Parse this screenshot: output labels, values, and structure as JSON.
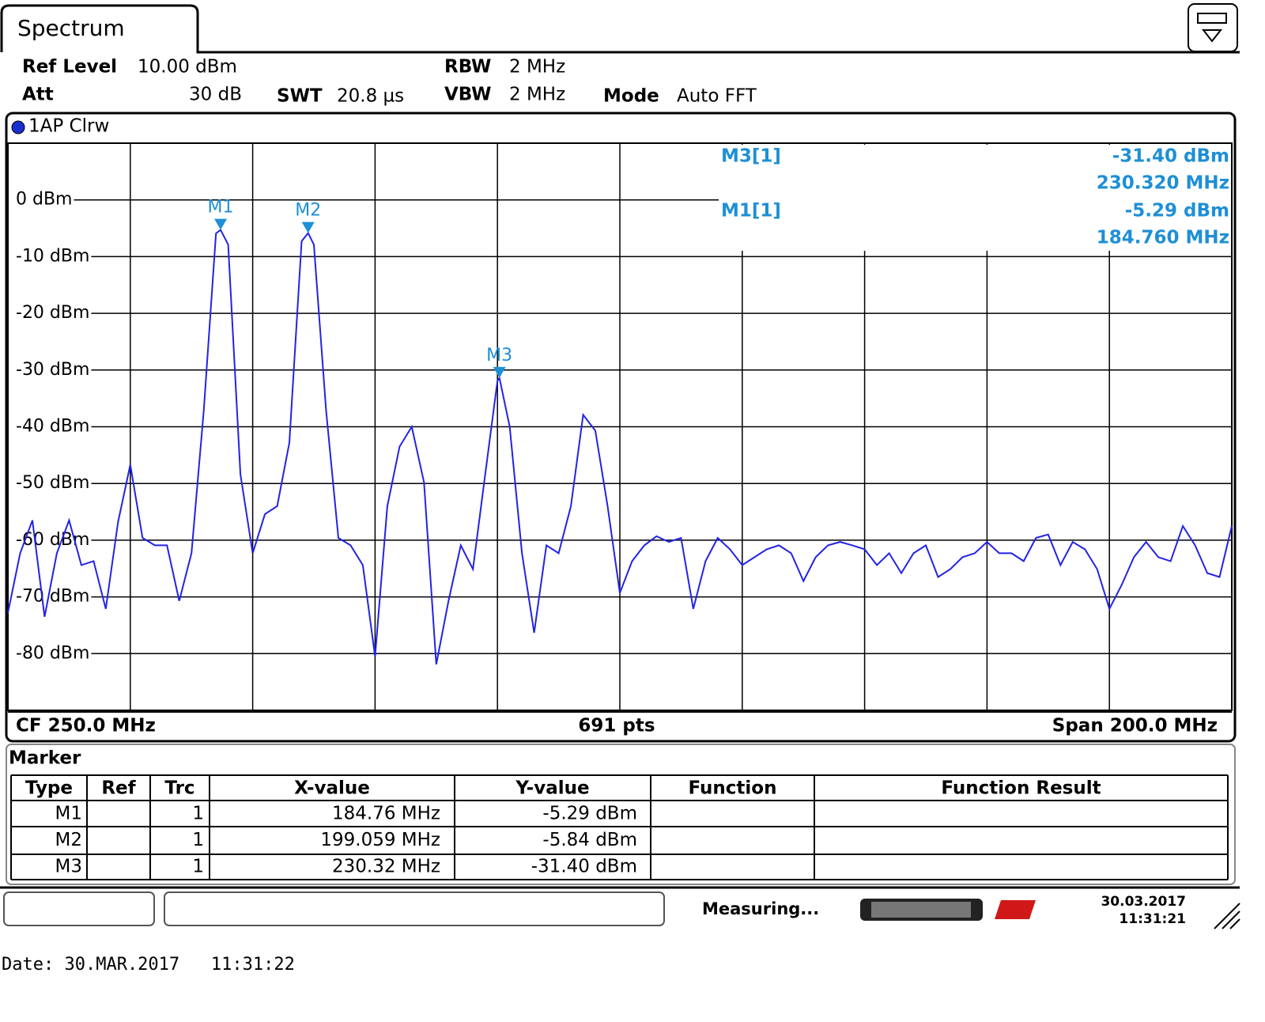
{
  "tab": "Spectrum",
  "settings": {
    "ref_level": {
      "label": "Ref Level",
      "value": "10.00 dBm"
    },
    "att": {
      "label": "Att",
      "value": "30 dB"
    },
    "swt": {
      "label": "SWT",
      "value": "20.8 µs"
    },
    "rbw": {
      "label": "RBW",
      "value": "2 MHz"
    },
    "vbw": {
      "label": "VBW",
      "value": "2 MHz"
    },
    "mode": {
      "label": "Mode",
      "value": "Auto FFT"
    }
  },
  "chart_data": {
    "type": "line",
    "x": [
      150,
      152,
      154,
      156,
      158,
      160,
      162,
      164,
      166,
      168,
      170,
      172,
      174,
      176,
      178,
      180,
      182,
      184,
      184.76,
      186,
      188,
      190,
      192,
      194,
      196,
      198,
      199.059,
      200,
      202,
      204,
      206,
      208,
      210,
      212,
      214,
      216,
      218,
      220,
      222,
      224,
      226,
      228,
      230,
      230.32,
      232,
      234,
      236,
      238,
      240,
      242,
      244,
      246,
      248,
      250,
      252,
      254,
      256,
      258,
      260,
      262,
      264,
      266,
      268,
      270,
      272,
      274,
      276,
      278,
      280,
      282,
      284,
      286,
      288,
      290,
      292,
      294,
      296,
      298,
      300,
      302,
      304,
      306,
      308,
      310,
      312,
      314,
      316,
      318,
      320,
      322,
      324,
      326,
      328,
      330,
      332,
      334,
      336,
      338,
      340,
      342,
      344,
      346,
      348,
      350
    ],
    "series": [
      {
        "name": "1AP Clrw",
        "color": "#2323e6",
        "values": [
          -72.8,
          -62.3,
          -56.5,
          -73.5,
          -62.3,
          -56.5,
          -64.4,
          -63.7,
          -72.1,
          -56.8,
          -46.7,
          -59.6,
          -60.9,
          -60.9,
          -70.7,
          -62.3,
          -37.2,
          -5.9,
          -5.29,
          -7.9,
          -48.4,
          -62.3,
          -55.4,
          -54.0,
          -42.8,
          -7.3,
          -5.84,
          -7.9,
          -37.2,
          -59.6,
          -60.9,
          -64.4,
          -80.5,
          -54.0,
          -43.5,
          -40.0,
          -49.8,
          -81.9,
          -70.7,
          -60.9,
          -65.1,
          -48.4,
          -31.9,
          -31.4,
          -40.0,
          -62.3,
          -76.3,
          -60.9,
          -62.3,
          -54.0,
          -37.9,
          -40.7,
          -54.0,
          -69.3,
          -63.7,
          -60.9,
          -59.3,
          -60.3,
          -59.6,
          -72.1,
          -63.7,
          -59.6,
          -61.6,
          -64.4,
          -63.0,
          -61.6,
          -60.9,
          -62.3,
          -67.2,
          -63.0,
          -60.9,
          -60.3,
          -60.9,
          -61.6,
          -64.4,
          -62.3,
          -65.8,
          -62.3,
          -60.9,
          -66.5,
          -65.1,
          -63.0,
          -62.3,
          -60.3,
          -62.3,
          -62.3,
          -63.7,
          -59.6,
          -59.0,
          -64.4,
          -60.3,
          -61.6,
          -65.1,
          -72.1,
          -67.9,
          -63.0,
          -60.3,
          -63.0,
          -63.7,
          -57.5,
          -60.9,
          -65.8,
          -66.5,
          -57.5
        ]
      }
    ],
    "xlim": [
      150,
      350
    ],
    "xticks": [
      150,
      170,
      190,
      210,
      230,
      250,
      270,
      290,
      310,
      330,
      350
    ],
    "ylim": [
      -90,
      10
    ],
    "yticks": [
      {
        "value": 0,
        "label": "0 dBm"
      },
      {
        "value": -10,
        "label": "-10 dBm"
      },
      {
        "value": -20,
        "label": "-20 dBm"
      },
      {
        "value": -30,
        "label": "-30 dBm"
      },
      {
        "value": -40,
        "label": "-40 dBm"
      },
      {
        "value": -50,
        "label": "-50 dBm"
      },
      {
        "value": -60,
        "label": "-60 dBm"
      },
      {
        "value": -70,
        "label": "-70 dBm"
      },
      {
        "value": -80,
        "label": "-80 dBm"
      }
    ],
    "grid": true,
    "markers": [
      {
        "name": "M1",
        "x": 184.76,
        "y": -5.29
      },
      {
        "name": "M2",
        "x": 199.059,
        "y": -5.84
      },
      {
        "name": "M3",
        "x": 230.32,
        "y": -31.4
      }
    ],
    "marker_color": "#1e8fd6",
    "marker_info": [
      {
        "label": "M3[1]",
        "level": "-31.40 dBm",
        "frequency": "230.320 MHz"
      },
      {
        "label": "M1[1]",
        "level": "-5.29 dBm",
        "frequency": "184.760 MHz"
      }
    ]
  },
  "footer": {
    "left": "CF 250.0 MHz",
    "center": "691 pts",
    "right": "Span 200.0 MHz"
  },
  "marker_table": {
    "title": "Marker",
    "columns": [
      "Type",
      "Ref",
      "Trc",
      "X-value",
      "Y-value",
      "Function",
      "Function Result"
    ],
    "rows": [
      {
        "type": "M1",
        "trc": "1",
        "x": "184.76 MHz",
        "y": "-5.29 dBm"
      },
      {
        "type": "M2",
        "trc": "1",
        "x": "199.059 MHz",
        "y": "-5.84 dBm"
      },
      {
        "type": "M3",
        "trc": "1",
        "x": "230.32 MHz",
        "y": "-31.40 dBm"
      }
    ]
  },
  "status": {
    "message": "Measuring...",
    "date": "30.03.2017",
    "time": "11:31:21"
  },
  "timestamp": "Date: 30.MAR.2017   11:31:22"
}
